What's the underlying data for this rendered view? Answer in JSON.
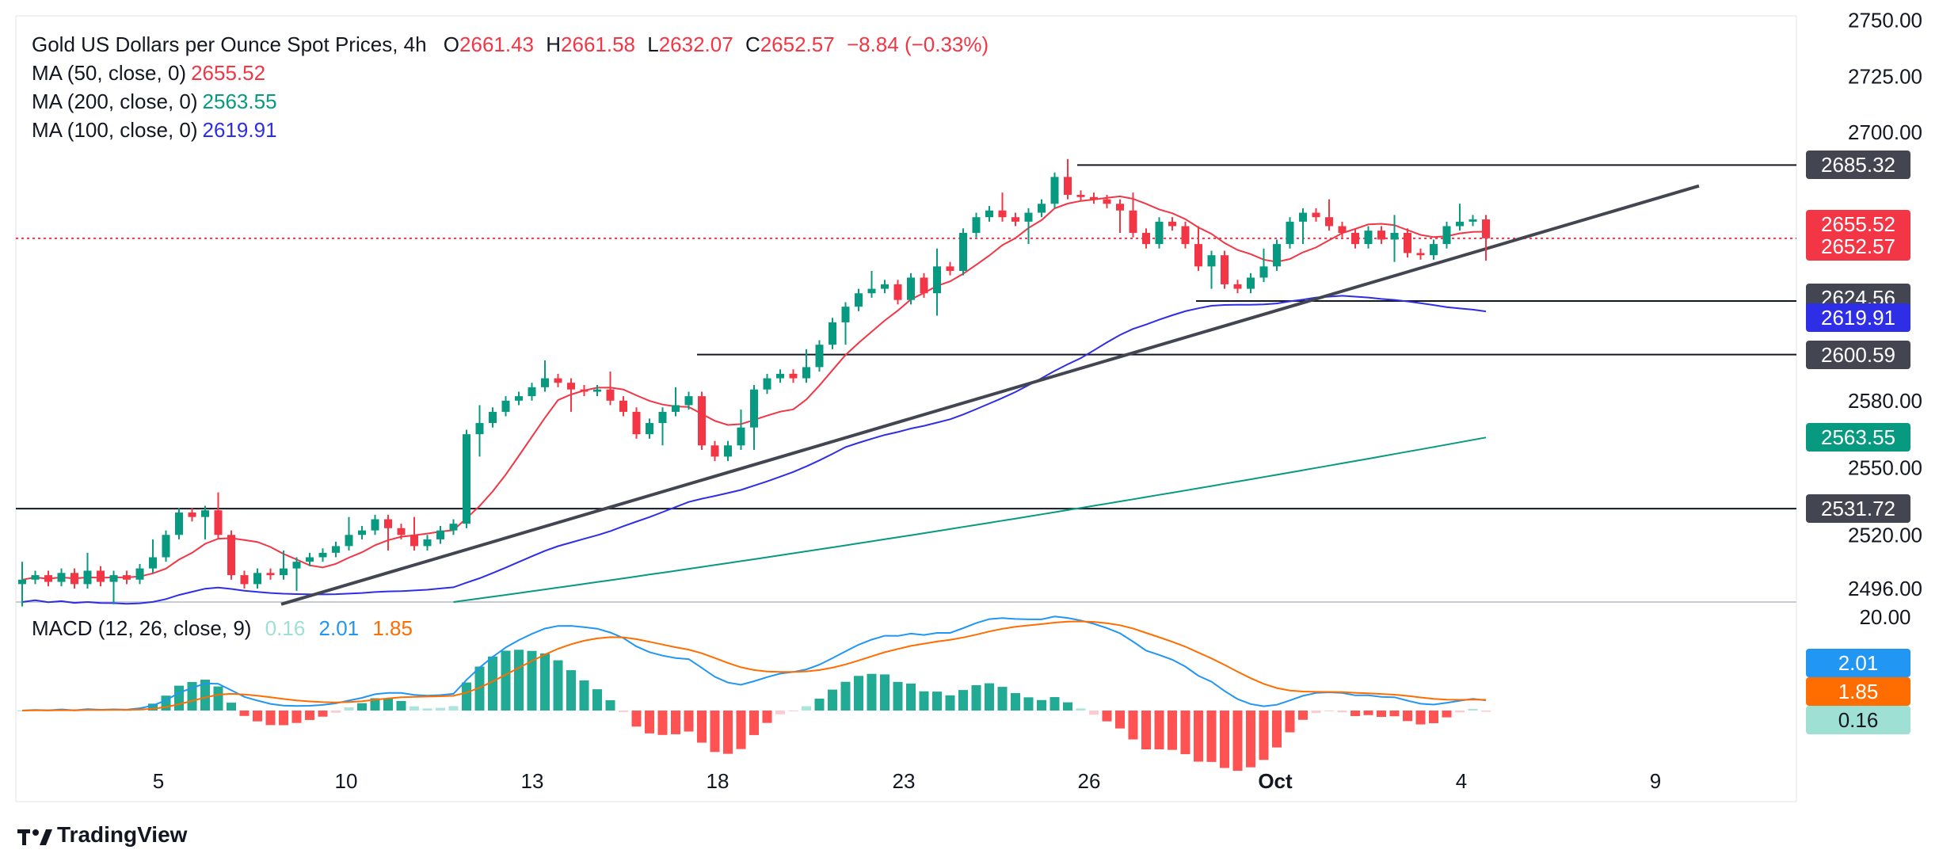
{
  "header": {
    "symbol": "Gold US Dollars per Ounce Spot Prices, 4h",
    "open_label": "O",
    "open": "2661.43",
    "high_label": "H",
    "high": "2661.58",
    "low_label": "L",
    "low": "2632.07",
    "close_label": "C",
    "close": "2652.57",
    "change": "−8.84 (−0.33%)"
  },
  "indicators": [
    {
      "label": "MA (50, close, 0)",
      "value": "2655.52",
      "color": "#f23645"
    },
    {
      "label": "MA (200, close, 0)",
      "value": "2563.55",
      "color": "#089981"
    },
    {
      "label": "MA (100, close, 0)",
      "value": "2619.91",
      "color": "#2e2ee6"
    }
  ],
  "macd": {
    "label": "MACD (12, 26, close, 9)",
    "hist_value": "0.16",
    "macd_value": "2.01",
    "signal_value": "1.85",
    "hist_color": "#9ee0d3",
    "macd_color": "#2196f3",
    "signal_color": "#ff6d00",
    "scale_top": "20.00"
  },
  "price_axis": [
    "2750.00",
    "2725.00",
    "2700.00",
    "2580.00",
    "2550.00",
    "2520.00",
    "2496.00"
  ],
  "price_tags": [
    {
      "value": "2685.32",
      "kind": "level"
    },
    {
      "value": "2655.52",
      "kind": "ma50"
    },
    {
      "value": "2652.57",
      "kind": "last"
    },
    {
      "value": "2624.56",
      "kind": "level"
    },
    {
      "value": "2619.91",
      "kind": "ma100"
    },
    {
      "value": "2600.59",
      "kind": "level"
    },
    {
      "value": "2563.55",
      "kind": "ma200"
    },
    {
      "value": "2531.72",
      "kind": "level"
    }
  ],
  "time_axis": [
    "5",
    "10",
    "13",
    "18",
    "23",
    "26",
    "Oct",
    "4",
    "9"
  ],
  "logo_text": "TradingView",
  "colors": {
    "up": "#089981",
    "down": "#f23645",
    "ma50": "#f23645",
    "ma100": "#2e2ee6",
    "ma200": "#089981",
    "level": "#131722",
    "trend": "#434651"
  },
  "chart_data": {
    "type": "candlestick",
    "title": "Gold US Dollars per Ounce Spot Prices, 4h",
    "ylim": [
      2490,
      2752
    ],
    "horizontal_levels": [
      2685.32,
      2624.56,
      2600.59,
      2531.72
    ],
    "last_price": 2652.57,
    "trendline": {
      "from": [
        "Sep 8",
        2489
      ],
      "to": [
        "Oct 9",
        2657
      ]
    },
    "ma50_end": 2655.52,
    "ma100_end": 2619.91,
    "ma200_end": 2563.55,
    "close_path": [
      2500,
      2502,
      2499,
      2503,
      2498,
      2504,
      2499,
      2502,
      2500,
      2505,
      2510,
      2520,
      2530,
      2528,
      2531,
      2520,
      2502,
      2498,
      2503,
      2502,
      2505,
      2508,
      2510,
      2512,
      2515,
      2520,
      2522,
      2527,
      2523,
      2520,
      2515,
      2518,
      2522,
      2525,
      2565,
      2570,
      2575,
      2580,
      2582,
      2586,
      2590,
      2588,
      2585,
      2584,
      2585,
      2580,
      2575,
      2565,
      2570,
      2575,
      2578,
      2582,
      2560,
      2555,
      2560,
      2568,
      2585,
      2590,
      2592,
      2590,
      2595,
      2605,
      2615,
      2622,
      2628,
      2630,
      2632,
      2625,
      2635,
      2628,
      2640,
      2638,
      2655,
      2662,
      2665,
      2662,
      2660,
      2664,
      2668,
      2680,
      2672,
      2671,
      2670,
      2668,
      2665,
      2655,
      2650,
      2660,
      2658,
      2650,
      2640,
      2645,
      2632,
      2630,
      2635,
      2640,
      2650,
      2660,
      2664,
      2662,
      2658,
      2655,
      2650,
      2656,
      2652,
      2655,
      2646,
      2645,
      2650,
      2658,
      2660,
      2661,
      2652.57
    ]
  }
}
